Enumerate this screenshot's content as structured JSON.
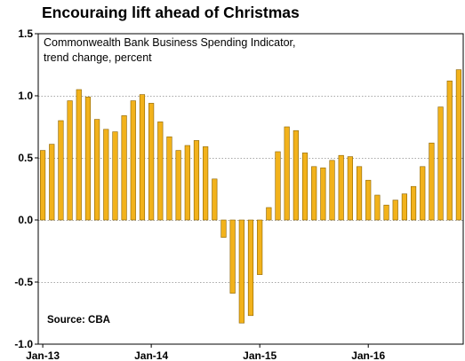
{
  "chart_data": {
    "type": "bar",
    "title": "Encouraing lift ahead of Christmas",
    "subtitle_lines": [
      "Commonwealth Bank Business Spending Indicator,",
      "trend change, percent"
    ],
    "source": "Source: CBA",
    "xlabel": "",
    "ylabel": "",
    "ylim": [
      -1.0,
      1.5
    ],
    "yticks": [
      -1.0,
      -0.5,
      0.0,
      0.5,
      1.0,
      1.5
    ],
    "ytick_labels": [
      "-1.0",
      "-0.5",
      "0.0",
      "0.5",
      "1.0",
      "1.5"
    ],
    "xtick_labels": [
      {
        "label": "Jan-13",
        "index": 0
      },
      {
        "label": "Jan-14",
        "index": 12
      },
      {
        "label": "Jan-15",
        "index": 24
      },
      {
        "label": "Jan-16",
        "index": 36
      }
    ],
    "grid": true,
    "bar_color": "#F2B21B",
    "bar_edge_color": "#8A6200",
    "categories": [
      "Jan-13",
      "Feb-13",
      "Mar-13",
      "Apr-13",
      "May-13",
      "Jun-13",
      "Jul-13",
      "Aug-13",
      "Sep-13",
      "Oct-13",
      "Nov-13",
      "Dec-13",
      "Jan-14",
      "Feb-14",
      "Mar-14",
      "Apr-14",
      "May-14",
      "Jun-14",
      "Jul-14",
      "Aug-14",
      "Sep-14",
      "Oct-14",
      "Nov-14",
      "Dec-14",
      "Jan-15",
      "Feb-15",
      "Mar-15",
      "Apr-15",
      "May-15",
      "Jun-15",
      "Jul-15",
      "Aug-15",
      "Sep-15",
      "Oct-15",
      "Nov-15",
      "Dec-15",
      "Jan-16",
      "Feb-16",
      "Mar-16",
      "Apr-16",
      "May-16",
      "Jun-16",
      "Jul-16",
      "Aug-16",
      "Sep-16",
      "Oct-16",
      "Nov-16"
    ],
    "values": [
      0.56,
      0.61,
      0.8,
      0.96,
      1.05,
      0.99,
      0.81,
      0.73,
      0.71,
      0.84,
      0.96,
      1.01,
      0.94,
      0.79,
      0.67,
      0.56,
      0.6,
      0.64,
      0.59,
      0.33,
      -0.14,
      -0.59,
      -0.83,
      -0.77,
      -0.44,
      0.1,
      0.55,
      0.75,
      0.72,
      0.54,
      0.43,
      0.42,
      0.48,
      0.52,
      0.51,
      0.43,
      0.32,
      0.2,
      0.12,
      0.16,
      0.21,
      0.27,
      0.43,
      0.62,
      0.91,
      1.12,
      1.21
    ]
  }
}
